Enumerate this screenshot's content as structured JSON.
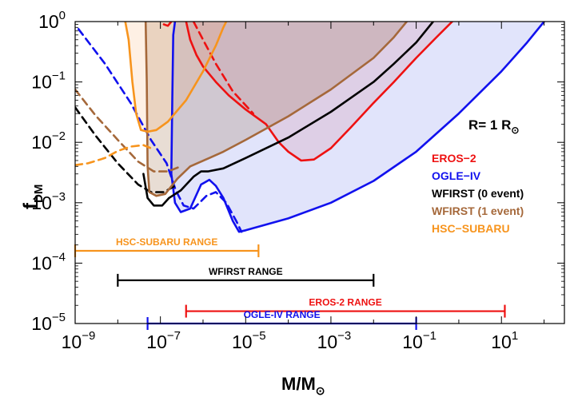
{
  "chart_data": {
    "type": "line",
    "xlabel": "M/M",
    "xlabel_sub": "⊙",
    "ylabel": "f",
    "ylabel_sub": "DM",
    "xscale": "log",
    "yscale": "log",
    "xlim": [
      1e-09,
      300
    ],
    "ylim": [
      1e-05,
      1
    ],
    "x_ticks": [
      {
        "base": "10",
        "exp": "−9",
        "value": 1e-09
      },
      {
        "base": "10",
        "exp": "−7",
        "value": 1e-07
      },
      {
        "base": "10",
        "exp": "−5",
        "value": 1e-05
      },
      {
        "base": "10",
        "exp": "−3",
        "value": 0.001
      },
      {
        "base": "10",
        "exp": "−1",
        "value": 0.1
      },
      {
        "base": "10",
        "exp": "1",
        "value": 10
      }
    ],
    "y_ticks": [
      {
        "base": "10",
        "exp": "−5",
        "value": 1e-05
      },
      {
        "base": "10",
        "exp": "−4",
        "value": 0.0001
      },
      {
        "base": "10",
        "exp": "−3",
        "value": 0.001
      },
      {
        "base": "10",
        "exp": "−2",
        "value": 0.01
      },
      {
        "base": "10",
        "exp": "−1",
        "value": 0.1
      },
      {
        "base": "10",
        "exp": "0",
        "value": 1
      }
    ],
    "annotation": {
      "text": "R= 1 R",
      "sub": "⊙"
    },
    "legend_position": "right",
    "series": [
      {
        "name": "EROS−2",
        "color": "#ee1111",
        "solid": [
          [
            1.2e-07,
            0.9
          ],
          [
            1.5e-07,
            0.85
          ],
          [
            1.8e-07,
            1.0
          ]
        ],
        "solid2": [
          [
            4e-07,
            1.0
          ],
          [
            5e-07,
            0.5
          ],
          [
            7e-07,
            0.28
          ],
          [
            1e-06,
            0.18
          ],
          [
            2e-06,
            0.1
          ],
          [
            4e-06,
            0.06
          ],
          [
            1e-05,
            0.035
          ],
          [
            3e-05,
            0.02
          ],
          [
            6e-05,
            0.01
          ],
          [
            0.0001,
            0.007
          ],
          [
            0.0002,
            0.005
          ],
          [
            0.0004,
            0.0052
          ],
          [
            0.001,
            0.008
          ],
          [
            0.003,
            0.018
          ],
          [
            0.01,
            0.045
          ],
          [
            0.03,
            0.1
          ],
          [
            0.1,
            0.25
          ],
          [
            0.3,
            0.55
          ],
          [
            0.7,
            1.0
          ]
        ],
        "dashed": [
          [
            6e-07,
            1.0
          ],
          [
            1e-06,
            0.5
          ],
          [
            2e-06,
            0.2
          ],
          [
            5e-06,
            0.07
          ],
          [
            1.5e-05,
            0.03
          ]
        ],
        "fill": "rgba(230,60,60,0.13)"
      },
      {
        "name": "OGLE−IV",
        "color": "#1111ee",
        "solid": [
          [
            2.2e-07,
            1.0
          ],
          [
            2e-07,
            0.6
          ],
          [
            1.9e-07,
            0.05
          ],
          [
            1.8e-07,
            0.003
          ],
          [
            2.2e-07,
            0.001
          ],
          [
            3e-07,
            0.0007
          ],
          [
            5e-07,
            0.0008
          ],
          [
            9e-07,
            0.002
          ],
          [
            1.4e-06,
            0.0024
          ],
          [
            2e-06,
            0.0019
          ],
          [
            3e-06,
            0.0012
          ],
          [
            5e-06,
            0.0005
          ],
          [
            7e-06,
            0.00033
          ],
          [
            1e-05,
            0.00035
          ],
          [
            0.0001,
            0.00055
          ],
          [
            0.001,
            0.001
          ],
          [
            0.01,
            0.0023
          ],
          [
            0.1,
            0.007
          ],
          [
            1,
            0.03
          ],
          [
            10,
            0.15
          ],
          [
            40,
            0.45
          ],
          [
            100,
            1.0
          ]
        ],
        "dashed": [
          [
            1.2e-09,
            0.75
          ],
          [
            5e-09,
            0.2
          ],
          [
            2e-08,
            0.045
          ],
          [
            6e-08,
            0.011
          ],
          [
            1.4e-07,
            0.0045
          ],
          [
            2.3e-07,
            0.0016
          ],
          [
            3.5e-07,
            0.0009
          ],
          [
            6e-07,
            0.0008
          ],
          [
            1.2e-06,
            0.0013
          ],
          [
            2e-06,
            0.0015
          ],
          [
            3.5e-06,
            0.001
          ],
          [
            6e-06,
            0.0005
          ],
          [
            8e-06,
            0.00033
          ]
        ],
        "fill": "rgba(70,90,230,0.16)"
      },
      {
        "name": "WFIRST (0 event)",
        "color": "#000000",
        "solid": [
          [
            4e-08,
            0.003
          ],
          [
            5e-08,
            0.0012
          ],
          [
            7e-08,
            0.0009
          ],
          [
            1.1e-07,
            0.0009
          ],
          [
            1.6e-07,
            0.0012
          ],
          [
            3e-07,
            0.0016
          ],
          [
            6e-07,
            0.0027
          ],
          [
            9e-07,
            0.0033
          ],
          [
            1.3e-06,
            0.0033
          ],
          [
            3e-06,
            0.0037
          ],
          [
            1e-05,
            0.0055
          ],
          [
            0.0001,
            0.012
          ],
          [
            0.001,
            0.032
          ],
          [
            0.01,
            0.1
          ],
          [
            0.03,
            0.2
          ],
          [
            0.1,
            0.45
          ],
          [
            0.25,
            1.0
          ]
        ],
        "dashed": [
          [
            1e-09,
            0.038
          ],
          [
            3e-09,
            0.013
          ],
          [
            1e-08,
            0.0045
          ],
          [
            3e-08,
            0.002
          ],
          [
            6e-08,
            0.0015
          ],
          [
            1.2e-07,
            0.0015
          ],
          [
            2.5e-07,
            0.002
          ]
        ]
      },
      {
        "name": "WFIRST (1 event)",
        "color": "#a5683a",
        "solid": [
          [
            4.5e-08,
            1.0
          ],
          [
            4.8e-08,
            0.1
          ],
          [
            5e-08,
            0.004
          ],
          [
            5.5e-08,
            0.0015
          ],
          [
            8e-08,
            0.0013
          ],
          [
            1.3e-07,
            0.0014
          ],
          [
            2.5e-07,
            0.0025
          ],
          [
            5e-07,
            0.004
          ],
          [
            9e-07,
            0.0048
          ],
          [
            1.4e-06,
            0.0055
          ],
          [
            3e-06,
            0.007
          ],
          [
            1e-05,
            0.011
          ],
          [
            0.0001,
            0.027
          ],
          [
            0.001,
            0.075
          ],
          [
            0.01,
            0.25
          ],
          [
            0.03,
            0.55
          ],
          [
            0.06,
            1.0
          ]
        ],
        "dashed": [
          [
            1e-09,
            0.075
          ],
          [
            3e-09,
            0.028
          ],
          [
            1e-08,
            0.011
          ],
          [
            3e-08,
            0.0048
          ],
          [
            7e-08,
            0.0033
          ],
          [
            1.5e-07,
            0.0033
          ],
          [
            3e-07,
            0.004
          ]
        ],
        "fill": "rgba(150,100,60,0.22)"
      },
      {
        "name": "HSC−SUBARU",
        "color": "#f7941d",
        "solid": [
          [
            1.5e-08,
            1.0
          ],
          [
            1.8e-08,
            0.5
          ],
          [
            2.2e-08,
            0.1
          ],
          [
            2.7e-08,
            0.03
          ],
          [
            3.5e-08,
            0.016
          ],
          [
            5e-08,
            0.015
          ],
          [
            8e-08,
            0.016
          ],
          [
            1.5e-07,
            0.022
          ],
          [
            4e-07,
            0.05
          ],
          [
            1e-06,
            0.15
          ],
          [
            2e-06,
            0.4
          ],
          [
            3e-06,
            0.8
          ],
          [
            3.5e-06,
            1.0
          ]
        ],
        "dashed": [
          [
            1e-09,
            0.0042
          ],
          [
            2e-09,
            0.0045
          ],
          [
            5e-09,
            0.0055
          ],
          [
            1e-08,
            0.0072
          ],
          [
            2e-08,
            0.0085
          ],
          [
            4e-08,
            0.009
          ],
          [
            6e-08,
            0.008
          ]
        ],
        "fill": "rgba(247,160,90,0.16)"
      }
    ],
    "ranges": [
      {
        "label": "HSC-SUBARU RANGE",
        "color": "#f7941d",
        "xmin": 1e-09,
        "xmax": 2e-05,
        "y": 0.00016
      },
      {
        "label": "WFIRST RANGE",
        "color": "#000000",
        "xmin": 1e-08,
        "xmax": 0.01,
        "y": 5.2e-05
      },
      {
        "label": "EROS-2 RANGE",
        "color": "#ee1111",
        "xmin": 4e-07,
        "xmax": 12,
        "y": 1.6e-05
      },
      {
        "label": "OGLE-IV RANGE",
        "color": "#1111ee",
        "xmin": 5e-08,
        "xmax": 0.1,
        "y": 1e-05
      }
    ]
  }
}
